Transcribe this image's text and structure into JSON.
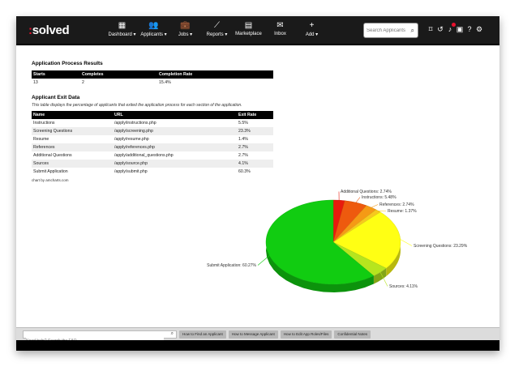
{
  "app": {
    "logo_colon": ":",
    "logo_text": "solved"
  },
  "nav": {
    "items": [
      {
        "icon": "dashboard-icon",
        "glyph": "▦",
        "label": "Dashboard ▾"
      },
      {
        "icon": "applicants-icon",
        "glyph": "👥",
        "label": "Applicants ▾"
      },
      {
        "icon": "jobs-icon",
        "glyph": "💼",
        "label": "Jobs ▾"
      },
      {
        "icon": "reports-icon",
        "glyph": "⟋",
        "label": "Reports ▾"
      },
      {
        "icon": "marketplace-icon",
        "glyph": "▤",
        "label": "Marketplace"
      },
      {
        "icon": "inbox-icon",
        "glyph": "✉",
        "label": "Inbox"
      },
      {
        "icon": "add-icon",
        "glyph": "+",
        "label": "Add ▾"
      }
    ],
    "search_placeholder": "Search Applicants"
  },
  "utilities": [
    "bookmark-icon",
    "history-icon",
    "bell-icon",
    "calendar-icon",
    "help-icon",
    "gear-icon"
  ],
  "process_results": {
    "heading": "Application Process Results",
    "columns": [
      "Starts",
      "Completes",
      "Completion Rate"
    ],
    "row": [
      "13",
      "2",
      "15.4%"
    ]
  },
  "exit_data": {
    "heading": "Applicant Exit Data",
    "description": "This table displays the percentage of applicants that exited the application process for each section of the application.",
    "columns": [
      "Name",
      "URL",
      "Exit Rate"
    ],
    "rows": [
      [
        "Instructions",
        "/apply/instructions.php",
        "5.5%"
      ],
      [
        "Screening Questions",
        "/apply/screening.php",
        "23.3%"
      ],
      [
        "Resume",
        "/apply/resume.php",
        "1.4%"
      ],
      [
        "References",
        "/apply/references.php",
        "2.7%"
      ],
      [
        "Additional Questions",
        "/apply/additional_questions.php",
        "2.7%"
      ],
      [
        "Sources",
        "/apply/source.php",
        "4.1%"
      ],
      [
        "Submit Application",
        "/apply/submit.php",
        "60.3%"
      ]
    ],
    "credit": "chart by amcharts.com"
  },
  "chart_data": {
    "type": "pie",
    "slices": [
      {
        "label": "Additional Questions: 2.74%",
        "value": 2.74,
        "color": "#e81b0c"
      },
      {
        "label": "Instructions: 5.48%",
        "value": 5.48,
        "color": "#ee5a0e"
      },
      {
        "label": "References: 2.74%",
        "value": 2.74,
        "color": "#f59a15"
      },
      {
        "label": "Resume: 1.37%",
        "value": 1.37,
        "color": "#f7c81e"
      },
      {
        "label": "Screening Questions: 23.29%",
        "value": 23.29,
        "color": "#ffff14"
      },
      {
        "label": "Sources: 4.11%",
        "value": 4.11,
        "color": "#b6e51e"
      },
      {
        "label": "Submit Application: 60.27%",
        "value": 60.27,
        "color": "#11cc11"
      }
    ]
  },
  "bottom": {
    "faq_placeholder": "Need help? Search the FAQ",
    "links": [
      "How to Find an Applicant",
      "How to Message Applicant",
      "How to Edit App Roles/Files",
      "Confidential Notes"
    ]
  }
}
